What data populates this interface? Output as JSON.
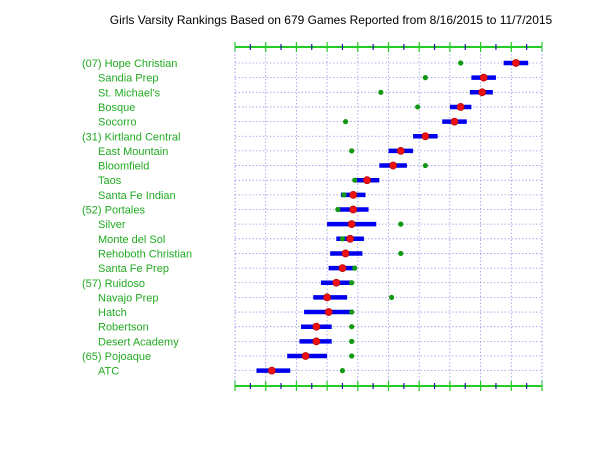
{
  "chart_data": {
    "type": "scatter",
    "title": "Girls Varsity Rankings Based on 679 Games Reported from 8/16/2015 to 11/7/2015",
    "xlabel": "",
    "ylabel": "",
    "xlim": [
      0,
      100
    ],
    "grid": true,
    "colors": {
      "label": "#22aa22",
      "axis": "#22cc22",
      "axis_tick": "#1a1aa0",
      "grid": "#9a9ae8",
      "range_bar": "#0000ee",
      "rank_point": "#ee1111",
      "rank_outline": "#aa0000",
      "other_point": "#119911"
    },
    "teams": [
      {
        "label": "(07) Hope Christian",
        "rank": 91.5,
        "low": 87.5,
        "high": 95.5,
        "green": 73.5
      },
      {
        "label": "Sandia Prep",
        "rank": 81.0,
        "low": 77.0,
        "high": 85.0,
        "green": 62.0
      },
      {
        "label": "St. Michael's",
        "rank": 80.5,
        "low": 76.5,
        "high": 84.0,
        "green": 47.5
      },
      {
        "label": "Bosque",
        "rank": 73.5,
        "low": 70.0,
        "high": 77.0,
        "green": 59.5
      },
      {
        "label": "Socorro",
        "rank": 71.5,
        "low": 67.5,
        "high": 75.5,
        "green": 36.0
      },
      {
        "label": "(31) Kirtland Central",
        "rank": 62.0,
        "low": 58.0,
        "high": 66.0,
        "green": 62.0
      },
      {
        "label": "East Mountain",
        "rank": 54.0,
        "low": 50.0,
        "high": 58.0,
        "green": 38.0
      },
      {
        "label": "Bloomfield",
        "rank": 51.5,
        "low": 47.0,
        "high": 56.0,
        "green": 62.0
      },
      {
        "label": "Taos",
        "rank": 43.0,
        "low": 39.0,
        "high": 47.0,
        "green": 39.0
      },
      {
        "label": "Santa Fe Indian",
        "rank": 38.5,
        "low": 34.5,
        "high": 42.5,
        "green": 35.5
      },
      {
        "label": "(52) Portales",
        "rank": 38.5,
        "low": 33.5,
        "high": 43.5,
        "green": 33.5
      },
      {
        "label": "Silver",
        "rank": 38.0,
        "low": 30.0,
        "high": 46.0,
        "green": 54.0
      },
      {
        "label": "Monte del Sol",
        "rank": 37.5,
        "low": 33.0,
        "high": 42.0,
        "green": 35.0
      },
      {
        "label": "Rehoboth Christian",
        "rank": 36.0,
        "low": 31.0,
        "high": 41.5,
        "green": 54.0
      },
      {
        "label": "Santa Fe Prep",
        "rank": 35.0,
        "low": 30.5,
        "high": 39.5,
        "green": 39.0
      },
      {
        "label": "(57) Ruidoso",
        "rank": 33.0,
        "low": 28.0,
        "high": 38.0,
        "green": 38.0
      },
      {
        "label": "Navajo Prep",
        "rank": 30.0,
        "low": 25.5,
        "high": 36.5,
        "green": 51.0
      },
      {
        "label": "Hatch",
        "rank": 30.5,
        "low": 22.5,
        "high": 38.5,
        "green": 38.0
      },
      {
        "label": "Robertson",
        "rank": 26.5,
        "low": 21.5,
        "high": 31.5,
        "green": 38.0
      },
      {
        "label": "Desert Academy",
        "rank": 26.5,
        "low": 21.0,
        "high": 31.5,
        "green": 38.0
      },
      {
        "label": "(65) Pojoaque",
        "rank": 23.0,
        "low": 17.0,
        "high": 30.0,
        "green": 38.0
      },
      {
        "label": "ATC",
        "rank": 12.0,
        "low": 7.0,
        "high": 18.0,
        "green": 35.0
      }
    ]
  }
}
